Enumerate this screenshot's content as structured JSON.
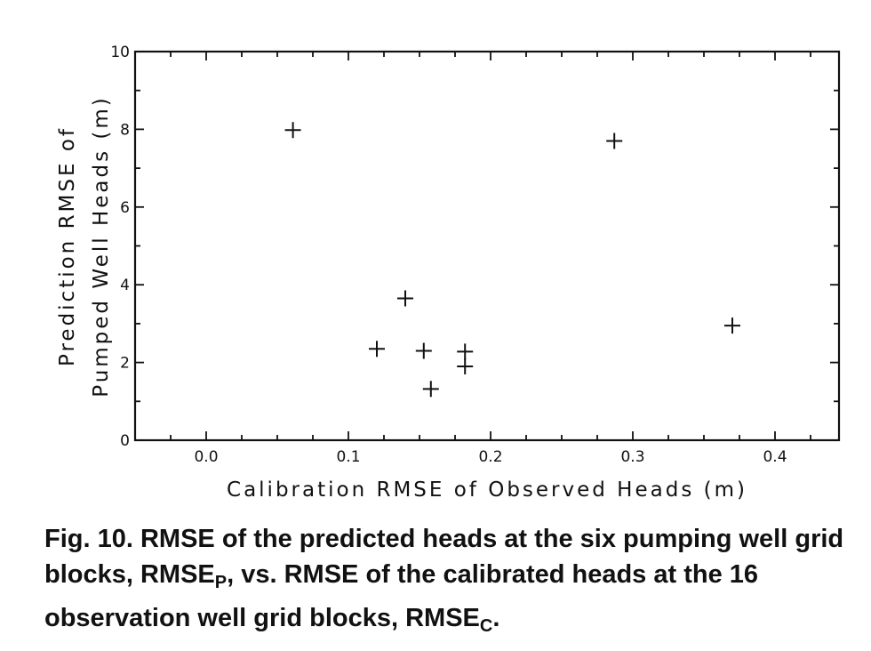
{
  "chart_data": {
    "type": "scatter",
    "marker": "plus",
    "xlabel": "Calibration RMSE of Observed Heads (m)",
    "ylabel_lines": [
      "Prediction RMSE of",
      "Pumped Well Heads (m)"
    ],
    "x_ticks": [
      "0.0",
      "0.1",
      "0.2",
      "0.3",
      "0.4"
    ],
    "x_tick_values": [
      0.0,
      0.1,
      0.2,
      0.3,
      0.4
    ],
    "y_ticks": [
      "0",
      "2",
      "4",
      "6",
      "8",
      "10"
    ],
    "y_tick_values": [
      0,
      2,
      4,
      6,
      8,
      10
    ],
    "xlim": [
      -0.05,
      0.445
    ],
    "ylim": [
      0,
      10
    ],
    "grid": false,
    "points": [
      {
        "x": 0.061,
        "y": 7.98
      },
      {
        "x": 0.12,
        "y": 2.35
      },
      {
        "x": 0.14,
        "y": 3.65
      },
      {
        "x": 0.153,
        "y": 2.3
      },
      {
        "x": 0.158,
        "y": 1.32
      },
      {
        "x": 0.182,
        "y": 2.28
      },
      {
        "x": 0.182,
        "y": 1.9
      },
      {
        "x": 0.287,
        "y": 7.7
      },
      {
        "x": 0.37,
        "y": 2.95
      }
    ]
  },
  "caption": {
    "lead": "Fig. 10. RMSE of the predicted heads at the six pumping well grid blocks, RMSE",
    "sub1": "P",
    "middle": ", vs. RMSE of the calibrated heads at the 16 observation well grid blocks, RMSE",
    "sub2": "C",
    "tail": "."
  }
}
